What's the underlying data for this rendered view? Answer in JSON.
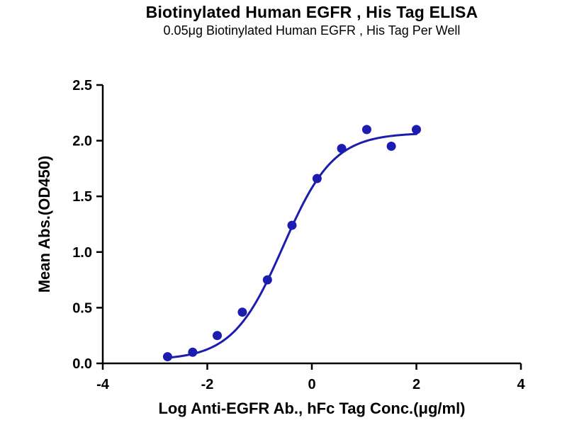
{
  "header": {
    "title": "Biotinylated Human EGFR , His Tag ELISA",
    "subtitle": "0.05μg Biotinylated Human EGFR , His Tag Per Well"
  },
  "chart_data": {
    "type": "scatter",
    "title": "Biotinylated Human EGFR , His Tag ELISA",
    "subtitle": "0.05μg Biotinylated Human EGFR , His Tag Per Well",
    "xlabel": "Log Anti-EGFR Ab., hFc Tag Conc.(μg/ml)",
    "ylabel": "Mean Abs.(OD450)",
    "xlim": [
      -4,
      4
    ],
    "ylim": [
      0,
      2.5
    ],
    "x_ticks": [
      "-4",
      "-2",
      "0",
      "2",
      "4"
    ],
    "y_ticks": [
      "0.0",
      "0.5",
      "1.0",
      "1.5",
      "2.0",
      "2.5"
    ],
    "grid": false,
    "legend": "none",
    "points": {
      "x": [
        -2.76,
        -2.28,
        -1.81,
        -1.33,
        -0.85,
        -0.38,
        0.1,
        0.57,
        1.05,
        1.52,
        2.0
      ],
      "y": [
        0.06,
        0.1,
        0.25,
        0.46,
        0.75,
        1.24,
        1.66,
        1.93,
        2.1,
        1.95,
        2.1
      ]
    },
    "fit_curve": {
      "model": "4PL",
      "bottom": 0.03,
      "top": 2.07,
      "log_ec50": -0.55,
      "hill": 0.9,
      "x_start": -2.76,
      "x_end": 2.0
    },
    "colors": {
      "curve": "#1c1cb0",
      "point": "#1c1cb0",
      "axis": "#000000",
      "text": "#000000"
    }
  }
}
